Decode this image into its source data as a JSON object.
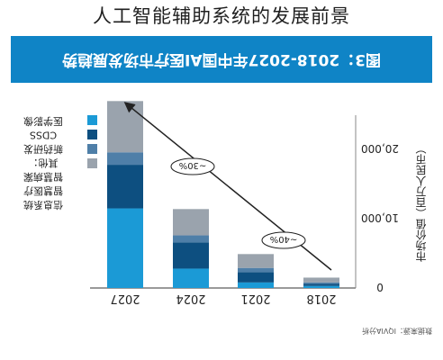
{
  "page": {
    "title": "人工智能辅助系统的发展前景",
    "banner_text": "图3：2018-2027年中国AI医疗市场发展趋势",
    "source_text": "数据来源：IQVIA分析"
  },
  "chart_data": {
    "type": "bar",
    "stacked": true,
    "mirrored": true,
    "title": "图3：2018-2027年中国AI医疗市场发展趋势",
    "ylabel": "市场价值（百万人民币）",
    "ylim": [
      0,
      26000
    ],
    "yticks": [
      0,
      10000,
      20000
    ],
    "ytick_labels": [
      "0",
      "10,000",
      "20,000"
    ],
    "categories": [
      "2018",
      "2021",
      "2024",
      "2027"
    ],
    "series": [
      {
        "name": "医学影像",
        "color": "#1b9ad6",
        "values": [
          300,
          800,
          2800,
          11500
        ]
      },
      {
        "name": "CDSS",
        "color": "#0d4f80",
        "values": [
          300,
          1500,
          3800,
          6300
        ]
      },
      {
        "name": "新药研发",
        "color": "#4f7fa8",
        "values": [
          200,
          600,
          1000,
          1800
        ]
      },
      {
        "name": "其他：智慧病案 智慧医疗 信息系统",
        "color": "#9aa3ad",
        "values": [
          700,
          2000,
          3800,
          7400
        ]
      }
    ],
    "legend": {
      "position": "top-right",
      "items": [
        "医学影像",
        "CDSS",
        "新药研发",
        "其他：",
        "智慧病案",
        "智慧医疗",
        "信息系统"
      ]
    },
    "annotations": [
      {
        "text": "~40%",
        "from": "2018",
        "to": "2024"
      },
      {
        "text": "~30%",
        "from": "2024",
        "to": "2027"
      }
    ]
  }
}
